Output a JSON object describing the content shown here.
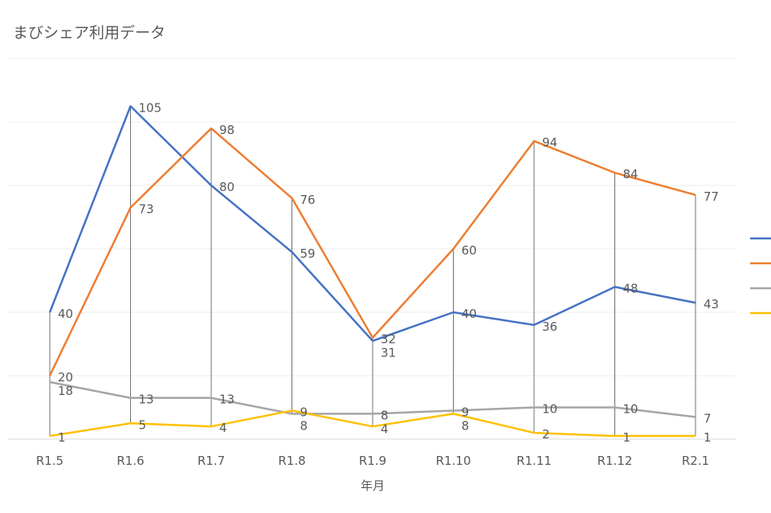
{
  "chart_data": {
    "type": "line",
    "title": "まびシェア利用データ",
    "xlabel": "年月",
    "ylabel": "",
    "categories": [
      "R1.5",
      "R1.6",
      "R1.7",
      "R1.8",
      "R1.9",
      "R1.10",
      "R1.11",
      "R1.12",
      "R2.1"
    ],
    "ylim": [
      0,
      120
    ],
    "ytick_step": 20,
    "grid": true,
    "y_tick_labels_shown": false,
    "high_low_lines": true,
    "legend_position": "right",
    "series": [
      {
        "color": "#4472C4",
        "values": [
          40,
          105,
          80,
          59,
          31,
          40,
          36,
          48,
          43
        ]
      },
      {
        "color": "#ED7D31",
        "values": [
          20,
          73,
          98,
          76,
          32,
          60,
          94,
          84,
          77
        ]
      },
      {
        "color": "#A5A5A5",
        "values": [
          18,
          13,
          13,
          8,
          8,
          9,
          10,
          10,
          7
        ]
      },
      {
        "color": "#FFC000",
        "values": [
          1,
          5,
          4,
          9,
          4,
          8,
          2,
          1,
          1
        ]
      }
    ]
  }
}
